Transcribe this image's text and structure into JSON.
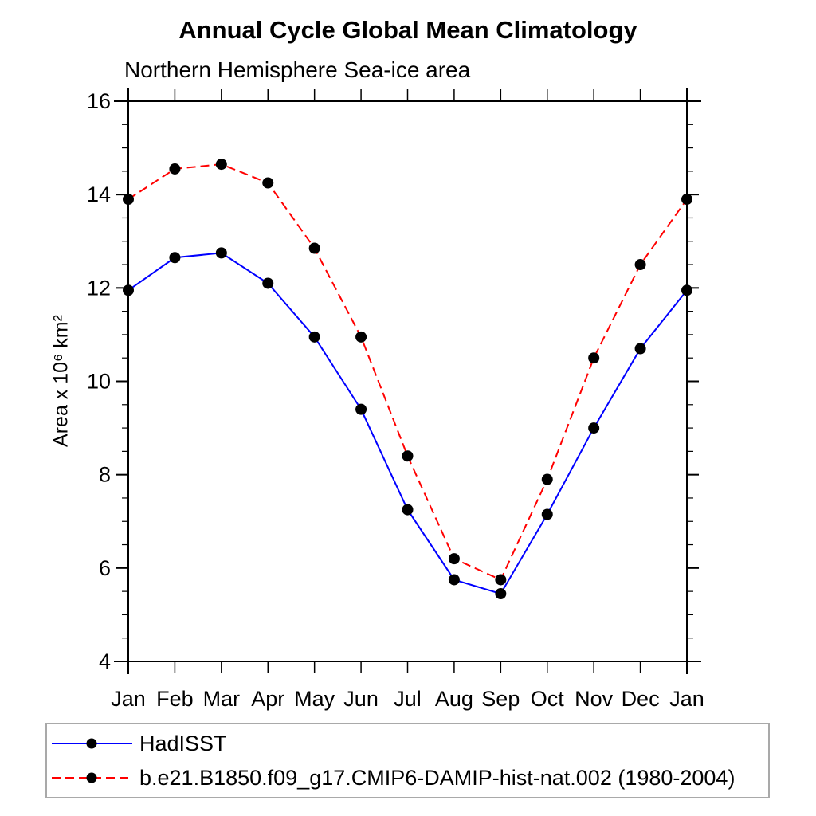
{
  "chart_data": {
    "type": "line",
    "title": "Annual Cycle Global Mean Climatology",
    "subtitle": "Northern Hemisphere Sea-ice area",
    "xlabel": "",
    "ylabel": "Area x 10⁶ km²",
    "x_categories": [
      "Jan",
      "Feb",
      "Mar",
      "Apr",
      "May",
      "Jun",
      "Jul",
      "Aug",
      "Sep",
      "Oct",
      "Nov",
      "Dec",
      "Jan"
    ],
    "ylim": [
      4,
      16
    ],
    "yticks_major": [
      4,
      6,
      8,
      10,
      12,
      14,
      16
    ],
    "ytick_minor_step": 0.5,
    "grid": false,
    "legend_position": "bottom-left-box",
    "frame_style": "box-outward-ticks",
    "colors": {
      "axis": "#000000",
      "marker": "#000000",
      "legend_border": "#a9a9a9",
      "series_hadisst": "#0000ff",
      "series_model": "#ff0000"
    },
    "series": [
      {
        "name": "HadISST",
        "color": "#0000ff",
        "style": "solid",
        "marker": "circle",
        "values": [
          11.95,
          12.65,
          12.75,
          12.1,
          10.95,
          9.4,
          7.25,
          5.75,
          5.45,
          7.15,
          9.0,
          10.7,
          11.95
        ]
      },
      {
        "name": "b.e21.B1850.f09_g17.CMIP6-DAMIP-hist-nat.002 (1980-2004)",
        "color": "#ff0000",
        "style": "dashed",
        "marker": "circle",
        "values": [
          13.9,
          14.55,
          14.65,
          14.25,
          12.85,
          10.95,
          8.4,
          6.2,
          5.75,
          7.9,
          10.5,
          12.5,
          13.9
        ]
      }
    ]
  }
}
